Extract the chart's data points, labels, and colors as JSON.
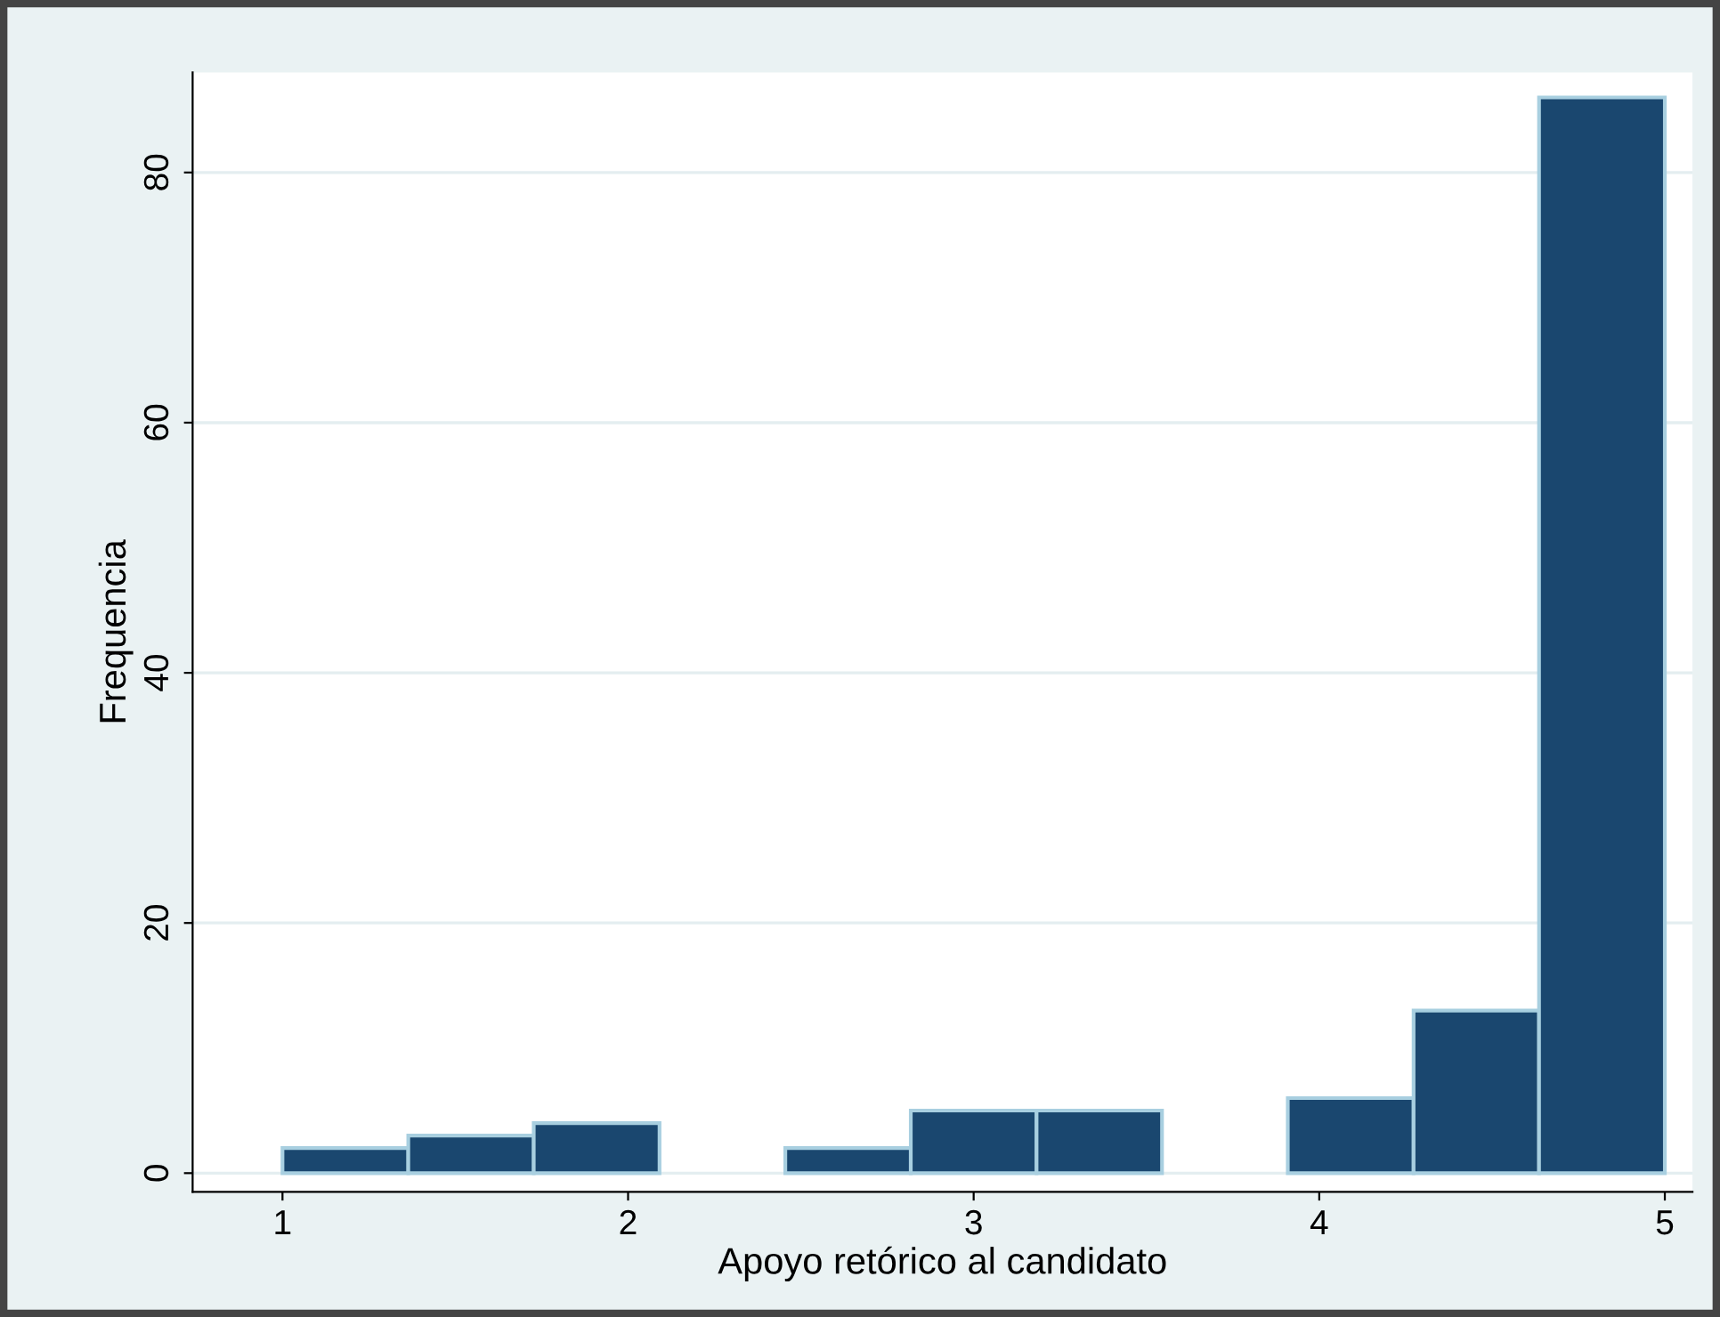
{
  "chart_data": {
    "type": "histogram",
    "xlabel": "Apoyo retórico al candidato",
    "ylabel": "Frequencia",
    "bins": [
      1,
      1.364,
      1.727,
      2.091,
      2.455,
      2.818,
      3.182,
      3.545,
      3.909,
      4.273,
      4.636,
      5
    ],
    "values": [
      2,
      3,
      4,
      0,
      2,
      5,
      5,
      0,
      6,
      13,
      86
    ],
    "color": "#1a476f",
    "xlim": [
      0.74,
      5.08
    ],
    "ylim": [
      -1.5,
      88
    ],
    "xticks": [
      1,
      2,
      3,
      4,
      5
    ],
    "yticks": [
      0,
      20,
      40,
      60,
      80
    ],
    "grid": "y"
  }
}
